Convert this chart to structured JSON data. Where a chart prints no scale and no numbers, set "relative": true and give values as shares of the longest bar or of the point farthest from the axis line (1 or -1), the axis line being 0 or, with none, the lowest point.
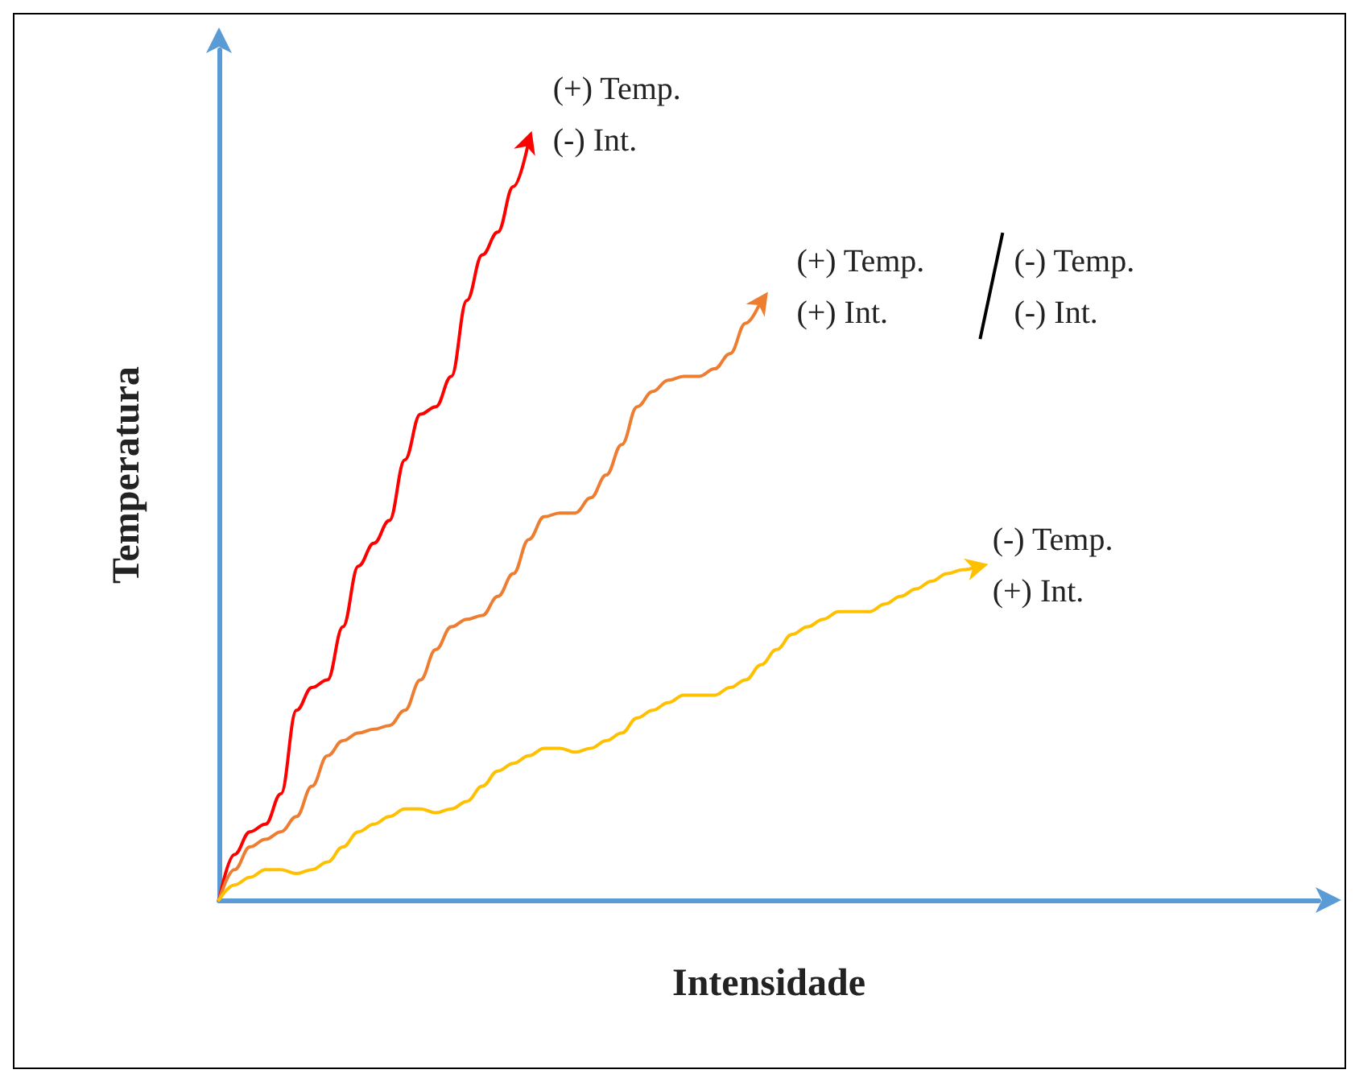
{
  "chart_data": {
    "type": "line",
    "relative": true,
    "xlabel": "Intensidade",
    "ylabel": "Temperatura",
    "marker": "none",
    "line_style": "solid",
    "grid": false,
    "categories": [
      null,
      null,
      null,
      null,
      null,
      null,
      null,
      null,
      null,
      null,
      null,
      null,
      null,
      null,
      null,
      null,
      null,
      null,
      null,
      null,
      null,
      null,
      null,
      null,
      null,
      null,
      null,
      null,
      null,
      null,
      null,
      null,
      null,
      null,
      null,
      null,
      null,
      null,
      null,
      null,
      null,
      null,
      null,
      null,
      null,
      null,
      null,
      null,
      null,
      null,
      null,
      null,
      null,
      null,
      null,
      null,
      null,
      null,
      null,
      null,
      null,
      null,
      null,
      null,
      null,
      null,
      null,
      null,
      null,
      null,
      null,
      null
    ],
    "series": [
      {
        "color": "#ff0000",
        "values": [
          0,
          0.06,
          0.09,
          0.1,
          0.14,
          0.25,
          0.28,
          0.29,
          0.36,
          0.44,
          0.47,
          0.5,
          0.58,
          0.64,
          0.65,
          0.69,
          0.79,
          0.85,
          0.88,
          0.94,
          1,
          null,
          null,
          null,
          null,
          null,
          null,
          null,
          null,
          null,
          null,
          null,
          null,
          null,
          null,
          null,
          null,
          null,
          null,
          null,
          null,
          null,
          null,
          null,
          null,
          null,
          null,
          null,
          null,
          null,
          null,
          null,
          null,
          null,
          null,
          null,
          null,
          null,
          null,
          null,
          null,
          null,
          null,
          null,
          null,
          null,
          null,
          null,
          null,
          null,
          null,
          null
        ]
      },
      {
        "color": "#ed7d31",
        "values": [
          0,
          0.04,
          0.07,
          0.08,
          0.09,
          0.11,
          0.15,
          0.19,
          0.21,
          0.22,
          0.225,
          0.23,
          0.25,
          0.29,
          0.33,
          0.36,
          0.37,
          0.375,
          0.4,
          0.43,
          0.475,
          0.505,
          0.51,
          0.51,
          0.53,
          0.56,
          0.6,
          0.65,
          0.67,
          0.685,
          0.69,
          0.69,
          0.7,
          0.72,
          0.76,
          0.79,
          null,
          null,
          null,
          null,
          null,
          null,
          null,
          null,
          null,
          null,
          null,
          null,
          null,
          null,
          null,
          null,
          null,
          null,
          null,
          null,
          null,
          null,
          null,
          null,
          null,
          null,
          null,
          null,
          null,
          null,
          null,
          null,
          null,
          null,
          null,
          null
        ]
      },
      {
        "color": "#ffc000",
        "values": [
          0,
          0.02,
          0.03,
          0.04,
          0.04,
          0.035,
          0.04,
          0.05,
          0.07,
          0.09,
          0.1,
          0.11,
          0.12,
          0.12,
          0.115,
          0.12,
          0.13,
          0.15,
          0.17,
          0.18,
          0.19,
          0.2,
          0.2,
          0.195,
          0.2,
          0.21,
          0.22,
          0.24,
          0.25,
          0.26,
          0.27,
          0.27,
          0.27,
          0.28,
          0.29,
          0.31,
          0.33,
          0.35,
          0.36,
          0.37,
          0.38,
          0.38,
          0.38,
          0.39,
          0.4,
          0.41,
          0.42,
          0.43,
          0.435,
          0.44,
          null,
          null,
          null,
          null,
          null,
          null,
          null,
          null,
          null,
          null,
          null,
          null,
          null,
          null,
          null,
          null,
          null,
          null,
          null,
          null,
          null,
          null
        ]
      }
    ],
    "annotations": [
      "(+) Temp.\n(-) Int.",
      "(+) Temp.\n(+) Int.",
      "(-) Temp.\n(-) Int.",
      "(-) Temp.\n(+) Int."
    ]
  }
}
